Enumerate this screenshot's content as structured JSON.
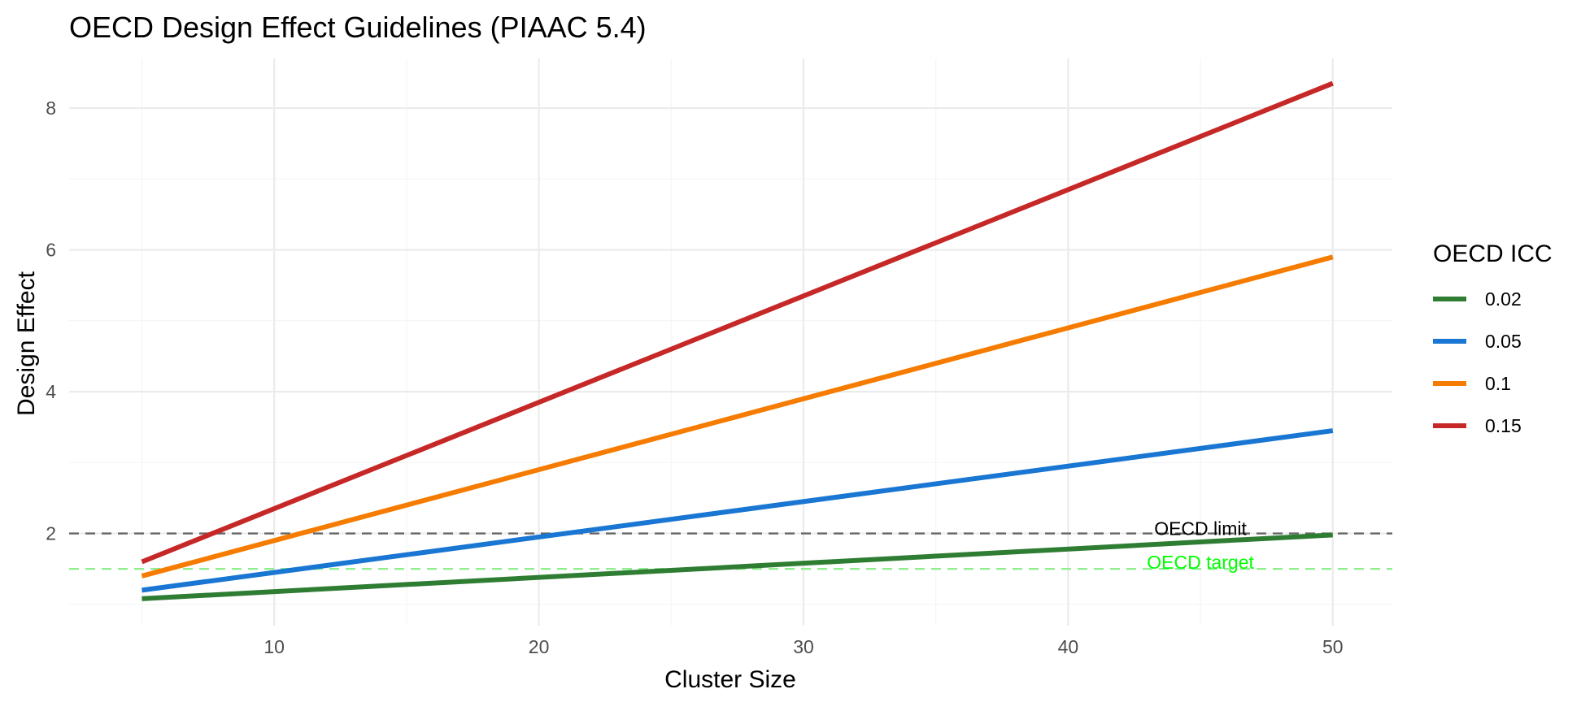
{
  "chart_data": {
    "type": "line",
    "title": "OECD Design Effect Guidelines (PIAAC 5.4)",
    "xlabel": "Cluster Size",
    "ylabel": "Design Effect",
    "xlim": [
      2.25,
      52.25
    ],
    "ylim": [
      0.7,
      8.7
    ],
    "x_ticks": [
      10,
      20,
      30,
      40,
      50
    ],
    "y_ticks": [
      2,
      4,
      6,
      8
    ],
    "x": [
      5,
      50
    ],
    "legend_title": "OECD ICC",
    "legend_position": "right",
    "grid": true,
    "series": [
      {
        "name": "0.02",
        "color": "#2e7d32",
        "values": [
          1.08,
          1.98
        ]
      },
      {
        "name": "0.05",
        "color": "#1976d2",
        "values": [
          1.2,
          3.45
        ]
      },
      {
        "name": "0.1",
        "color": "#f57c00",
        "values": [
          1.4,
          5.9
        ]
      },
      {
        "name": "0.15",
        "color": "#c62828",
        "values": [
          1.6,
          8.35
        ]
      }
    ],
    "reference_lines": [
      {
        "label": "OECD limit",
        "y": 2,
        "color": "#666666",
        "label_color": "#000000",
        "label_x": 45
      },
      {
        "label": "OECD target",
        "y": 1.5,
        "color": "#90ee90",
        "label_color": "#00ff00",
        "label_x": 45
      }
    ]
  }
}
